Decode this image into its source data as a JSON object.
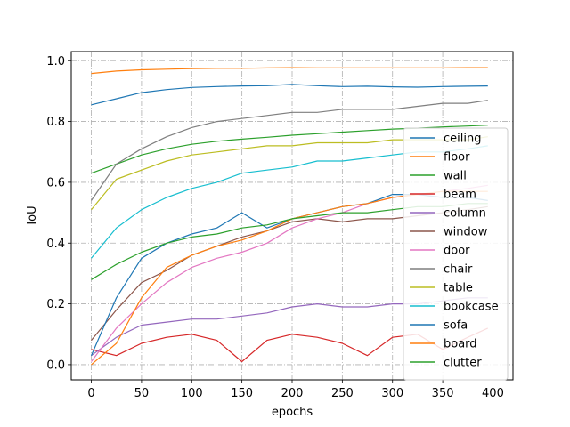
{
  "chart_data": {
    "type": "line",
    "title": "",
    "xlabel": "epochs",
    "ylabel": "IoU",
    "xlim": [
      -20,
      420
    ],
    "ylim": [
      -0.05,
      1.03
    ],
    "xticks": [
      0,
      50,
      100,
      150,
      200,
      250,
      300,
      350,
      400
    ],
    "xtick_labels": [
      "0",
      "50",
      "100",
      "150",
      "200",
      "250",
      "300",
      "350",
      "400"
    ],
    "yticks": [
      0.0,
      0.2,
      0.4,
      0.6,
      0.8,
      1.0
    ],
    "ytick_labels": [
      "0.0",
      "0.2",
      "0.4",
      "0.6",
      "0.8",
      "1.0"
    ],
    "grid": true,
    "legend_position": "lower-right",
    "x": [
      0,
      25,
      50,
      75,
      100,
      125,
      150,
      175,
      200,
      225,
      250,
      275,
      300,
      325,
      350,
      375,
      395
    ],
    "series": [
      {
        "name": "ceiling",
        "color": "#1f77b4",
        "values": [
          0.855,
          0.875,
          0.895,
          0.905,
          0.912,
          0.915,
          0.917,
          0.918,
          0.922,
          0.918,
          0.915,
          0.916,
          0.914,
          0.913,
          0.915,
          0.916,
          0.917
        ]
      },
      {
        "name": "floor",
        "color": "#ff7f0e",
        "values": [
          0.958,
          0.966,
          0.97,
          0.972,
          0.974,
          0.975,
          0.975,
          0.976,
          0.977,
          0.976,
          0.976,
          0.976,
          0.976,
          0.976,
          0.976,
          0.977,
          0.977
        ]
      },
      {
        "name": "wall",
        "color": "#2ca02c",
        "values": [
          0.63,
          0.66,
          0.69,
          0.71,
          0.725,
          0.735,
          0.742,
          0.748,
          0.755,
          0.76,
          0.765,
          0.77,
          0.775,
          0.778,
          0.782,
          0.785,
          0.788
        ]
      },
      {
        "name": "beam",
        "color": "#d62728",
        "values": [
          0.05,
          0.03,
          0.07,
          0.09,
          0.1,
          0.08,
          0.01,
          0.08,
          0.1,
          0.09,
          0.07,
          0.03,
          0.09,
          0.1,
          0.05,
          0.09,
          0.12
        ]
      },
      {
        "name": "column",
        "color": "#9467bd",
        "values": [
          0.03,
          0.09,
          0.13,
          0.14,
          0.15,
          0.15,
          0.16,
          0.17,
          0.19,
          0.2,
          0.19,
          0.19,
          0.2,
          0.2,
          0.21,
          0.22,
          0.22
        ]
      },
      {
        "name": "window",
        "color": "#8c564b",
        "values": [
          0.08,
          0.18,
          0.27,
          0.31,
          0.36,
          0.39,
          0.42,
          0.44,
          0.47,
          0.48,
          0.47,
          0.48,
          0.48,
          0.49,
          0.5,
          0.51,
          0.52
        ]
      },
      {
        "name": "door",
        "color": "#e377c2",
        "values": [
          0.01,
          0.12,
          0.2,
          0.27,
          0.32,
          0.35,
          0.37,
          0.4,
          0.45,
          0.48,
          0.5,
          0.53,
          0.55,
          0.56,
          0.57,
          0.58,
          0.59
        ]
      },
      {
        "name": "chair",
        "color": "#7f7f7f",
        "values": [
          0.54,
          0.66,
          0.71,
          0.75,
          0.78,
          0.8,
          0.81,
          0.82,
          0.83,
          0.83,
          0.84,
          0.84,
          0.84,
          0.85,
          0.86,
          0.86,
          0.87
        ]
      },
      {
        "name": "table",
        "color": "#bcbd22",
        "values": [
          0.51,
          0.61,
          0.64,
          0.67,
          0.69,
          0.7,
          0.71,
          0.72,
          0.72,
          0.73,
          0.73,
          0.73,
          0.74,
          0.74,
          0.74,
          0.74,
          0.75
        ]
      },
      {
        "name": "bookcase",
        "color": "#17becf",
        "values": [
          0.35,
          0.45,
          0.51,
          0.55,
          0.58,
          0.6,
          0.63,
          0.64,
          0.65,
          0.67,
          0.67,
          0.68,
          0.69,
          0.7,
          0.7,
          0.71,
          0.72
        ]
      },
      {
        "name": "sofa",
        "color": "#1f77b4",
        "values": [
          0.03,
          0.22,
          0.35,
          0.4,
          0.43,
          0.45,
          0.5,
          0.45,
          0.48,
          0.5,
          0.52,
          0.53,
          0.56,
          0.56,
          0.55,
          0.55,
          0.54
        ]
      },
      {
        "name": "board",
        "color": "#ff7f0e",
        "values": [
          0.0,
          0.07,
          0.22,
          0.32,
          0.36,
          0.39,
          0.41,
          0.44,
          0.48,
          0.5,
          0.52,
          0.53,
          0.55,
          0.56,
          0.57,
          0.57,
          0.57
        ]
      },
      {
        "name": "clutter",
        "color": "#2ca02c",
        "values": [
          0.28,
          0.33,
          0.37,
          0.4,
          0.42,
          0.43,
          0.45,
          0.46,
          0.48,
          0.49,
          0.5,
          0.5,
          0.51,
          0.52,
          0.52,
          0.53,
          0.53
        ]
      }
    ]
  }
}
